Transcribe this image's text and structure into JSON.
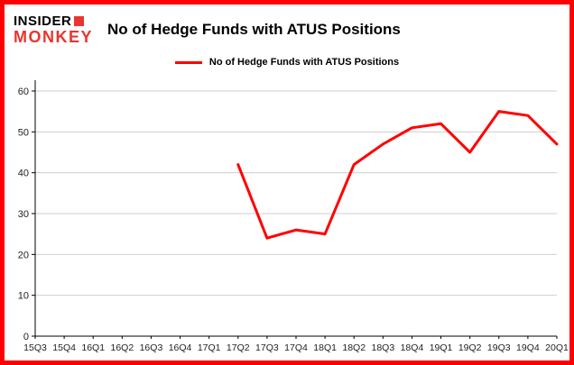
{
  "header": {
    "logo_line1": "INSIDER",
    "logo_line2": "MONKEY",
    "logo_accent_color": "#e8352e",
    "title": "No of Hedge Funds with ATUS Positions"
  },
  "legend": {
    "label": "No of Hedge Funds with ATUS Positions",
    "color": "#ff0000"
  },
  "frame": {
    "border_color": "#ff0000"
  },
  "chart_data": {
    "type": "line",
    "title": "No of Hedge Funds with ATUS Positions",
    "categories": [
      "15Q3",
      "15Q4",
      "16Q1",
      "16Q2",
      "16Q3",
      "16Q4",
      "17Q1",
      "17Q2",
      "17Q3",
      "17Q4",
      "18Q1",
      "18Q2",
      "18Q3",
      "18Q4",
      "19Q1",
      "19Q2",
      "19Q3",
      "19Q4",
      "20Q1"
    ],
    "series": [
      {
        "name": "No of Hedge Funds with ATUS Positions",
        "color": "#ff0000",
        "values": [
          null,
          null,
          null,
          null,
          null,
          null,
          null,
          42,
          24,
          26,
          25,
          42,
          47,
          51,
          52,
          45,
          55,
          54,
          47
        ]
      }
    ],
    "xlabel": "",
    "ylabel": "",
    "ylim": [
      0,
      60
    ],
    "yticks": [
      0,
      10,
      20,
      30,
      40,
      50,
      60
    ],
    "grid": "horizontal",
    "grid_color": "#cfcfcf",
    "axis_color": "#000000",
    "tick_label_color": "#222222",
    "legend_position": "top"
  }
}
